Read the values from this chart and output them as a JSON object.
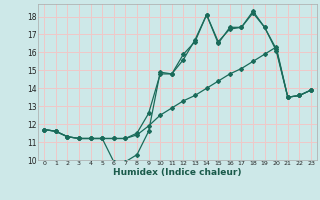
{
  "xlabel": "Humidex (Indice chaleur)",
  "bg_color": "#cde8e8",
  "grid_color": "#f0c8c8",
  "line_color": "#1a6b5a",
  "xlim": [
    -0.5,
    23.5
  ],
  "ylim": [
    10,
    18.7
  ],
  "yticks": [
    10,
    11,
    12,
    13,
    14,
    15,
    16,
    17,
    18
  ],
  "xticks": [
    0,
    1,
    2,
    3,
    4,
    5,
    6,
    7,
    8,
    9,
    10,
    11,
    12,
    13,
    14,
    15,
    16,
    17,
    18,
    19,
    20,
    21,
    22,
    23
  ],
  "line1_x": [
    0,
    1,
    2,
    3,
    4,
    5,
    6,
    7,
    8,
    9,
    10,
    11,
    12,
    13,
    14,
    15,
    16,
    17,
    18,
    19,
    20,
    21,
    22,
    23
  ],
  "line1_y": [
    11.7,
    11.6,
    11.3,
    11.2,
    11.2,
    11.2,
    9.9,
    9.9,
    10.3,
    11.6,
    14.9,
    14.8,
    15.6,
    16.7,
    18.1,
    16.6,
    17.3,
    17.4,
    18.2,
    17.4,
    16.1,
    13.5,
    13.6,
    13.9
  ],
  "line2_x": [
    0,
    1,
    2,
    3,
    4,
    5,
    6,
    7,
    8,
    9,
    10,
    11,
    12,
    13,
    14,
    15,
    16,
    17,
    18,
    19,
    20,
    21,
    22,
    23
  ],
  "line2_y": [
    11.7,
    11.6,
    11.3,
    11.2,
    11.2,
    11.2,
    11.2,
    11.2,
    11.5,
    12.6,
    14.8,
    14.8,
    15.9,
    16.6,
    18.1,
    16.5,
    17.4,
    17.4,
    18.3,
    17.4,
    16.2,
    13.5,
    13.6,
    13.9
  ],
  "line3_x": [
    0,
    1,
    2,
    3,
    4,
    5,
    6,
    7,
    8,
    9,
    10,
    11,
    12,
    13,
    14,
    15,
    16,
    17,
    18,
    19,
    20,
    21,
    22,
    23
  ],
  "line3_y": [
    11.7,
    11.6,
    11.3,
    11.2,
    11.2,
    11.2,
    11.2,
    11.2,
    11.4,
    11.9,
    12.5,
    12.9,
    13.3,
    13.6,
    14.0,
    14.4,
    14.8,
    15.1,
    15.5,
    15.9,
    16.3,
    13.5,
    13.6,
    13.9
  ]
}
